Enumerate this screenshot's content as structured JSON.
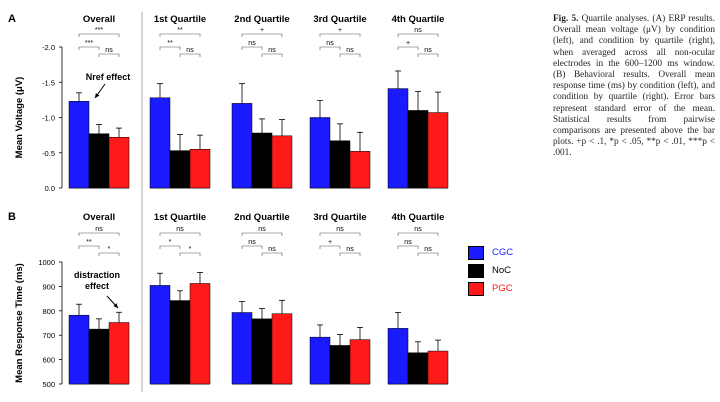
{
  "panels": [
    {
      "letter": "A",
      "ylabel": "Mean Voltage (μV)",
      "ylim": [
        0,
        -2.0
      ],
      "yticks": [
        "-2.0",
        "-1.5",
        "-1.0",
        "-0.5",
        "0.0"
      ],
      "annotation": "Nref effect",
      "groups": [
        {
          "title": "Overall",
          "values": [
            -1.23,
            -0.77,
            -0.72
          ],
          "errors": [
            0.12,
            0.13,
            0.13
          ],
          "sig": [
            "***",
            "***",
            "ns"
          ]
        },
        {
          "title": "1st Quartile",
          "values": [
            -1.28,
            -0.53,
            -0.55
          ],
          "errors": [
            0.2,
            0.23,
            0.2
          ],
          "sig": [
            "**",
            "**",
            "ns"
          ]
        },
        {
          "title": "2nd Quartile",
          "values": [
            -1.2,
            -0.78,
            -0.74
          ],
          "errors": [
            0.28,
            0.2,
            0.23
          ],
          "sig": [
            "+",
            "ns",
            "ns"
          ]
        },
        {
          "title": "3rd Quartile",
          "values": [
            -1.0,
            -0.67,
            -0.52
          ],
          "errors": [
            0.24,
            0.24,
            0.27
          ],
          "sig": [
            "+",
            "ns",
            "ns"
          ]
        },
        {
          "title": "4th Quartile",
          "values": [
            -1.41,
            -1.1,
            -1.07
          ],
          "errors": [
            0.25,
            0.27,
            0.29
          ],
          "sig": [
            "ns",
            "+",
            "ns"
          ]
        }
      ]
    },
    {
      "letter": "B",
      "ylabel": "Mean Response Time (ms)",
      "ylim": [
        500,
        1000
      ],
      "yticks": [
        "1000",
        "900",
        "800",
        "700",
        "600",
        "500"
      ],
      "annotation": "distraction effect",
      "groups": [
        {
          "title": "Overall",
          "values": [
            782,
            725,
            752
          ],
          "errors": [
            45,
            42,
            42
          ],
          "sig": [
            "ns",
            "**",
            "*"
          ]
        },
        {
          "title": "1st Quartile",
          "values": [
            904,
            842,
            912
          ],
          "errors": [
            50,
            40,
            45
          ],
          "sig": [
            "ns",
            "*",
            "*"
          ]
        },
        {
          "title": "2nd Quartile",
          "values": [
            793,
            767,
            788
          ],
          "errors": [
            45,
            42,
            55
          ],
          "sig": [
            "ns",
            "ns",
            "ns"
          ]
        },
        {
          "title": "3rd Quartile",
          "values": [
            692,
            658,
            682
          ],
          "errors": [
            50,
            45,
            50
          ],
          "sig": [
            "ns",
            "+",
            "ns"
          ]
        },
        {
          "title": "4th Quartile",
          "values": [
            728,
            628,
            635
          ],
          "errors": [
            65,
            45,
            45
          ],
          "sig": [
            "ns",
            "ns",
            "ns"
          ]
        }
      ]
    }
  ],
  "conditions": [
    "CGC",
    "NoC",
    "PGC"
  ],
  "colors": {
    "CGC": "#1a1aff",
    "NoC": "#000000",
    "PGC": "#ff1a1a",
    "divider": "#aaaaaa"
  },
  "caption": {
    "label": "Fig. 5.",
    "text": " Quartile analyses. (A) ERP results. Overall mean voltage (μV) by condition (left), and condition by quartile (right), when averaged across all non-ocular electrodes in the 600–1200 ms window. (B) Behavioral results. Overall mean response time (ms) by condition (left), and condition by quartile (right). Error bars represent standard error of the mean. Statistical results from pairwise comparisons are presented above the bar plots. ",
    "sig_note": "+p < .1, *p < .05, **p < .01, ***p < .001."
  },
  "chart_data": [
    {
      "type": "bar",
      "ylabel": "Mean Voltage (μV)",
      "ylim": [
        0,
        -2.0
      ],
      "categories": [
        "Overall",
        "1st Quartile",
        "2nd Quartile",
        "3rd Quartile",
        "4th Quartile"
      ],
      "series": [
        {
          "name": "CGC",
          "values": [
            -1.23,
            -1.28,
            -1.2,
            -1.0,
            -1.41
          ]
        },
        {
          "name": "NoC",
          "values": [
            -0.77,
            -0.53,
            -0.78,
            -0.67,
            -1.1
          ]
        },
        {
          "name": "PGC",
          "values": [
            -0.72,
            -0.55,
            -0.74,
            -0.52,
            -1.07
          ]
        }
      ]
    },
    {
      "type": "bar",
      "ylabel": "Mean Response Time (ms)",
      "ylim": [
        500,
        1000
      ],
      "categories": [
        "Overall",
        "1st Quartile",
        "2nd Quartile",
        "3rd Quartile",
        "4th Quartile"
      ],
      "series": [
        {
          "name": "CGC",
          "values": [
            782,
            904,
            793,
            692,
            728
          ]
        },
        {
          "name": "NoC",
          "values": [
            725,
            842,
            767,
            658,
            628
          ]
        },
        {
          "name": "PGC",
          "values": [
            752,
            912,
            788,
            682,
            635
          ]
        }
      ]
    }
  ]
}
